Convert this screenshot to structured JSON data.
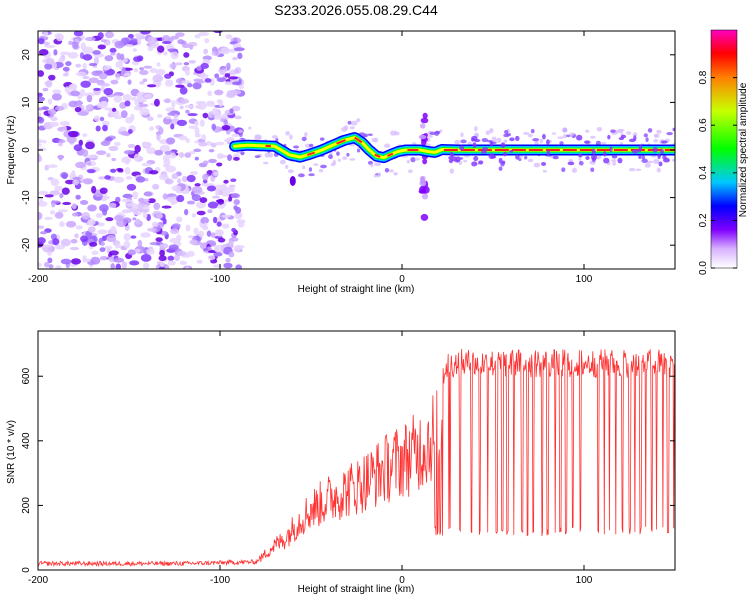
{
  "figure_title": "S233.2026.055.08.29.C44",
  "chart_data": [
    {
      "type": "heatmap",
      "title": "S233.2026.055.08.29.C44",
      "xlabel": "Height of straight line (km)",
      "ylabel": "Frequency (Hz)",
      "xlim": [
        -200,
        150
      ],
      "ylim": [
        -25,
        25
      ],
      "xticks": [
        -200,
        -100,
        0,
        100
      ],
      "yticks": [
        -20,
        -10,
        0,
        10,
        20
      ],
      "colorbar": {
        "label": "Normalized spectral amplitude",
        "range": [
          0,
          1
        ],
        "ticks": [
          0.0,
          0.2,
          0.4,
          0.6,
          0.8
        ],
        "tick_labels": [
          "0.0",
          "0.2",
          "0.4",
          "0.6",
          "0.8"
        ],
        "colormap": [
          "#ffffff",
          "#d9b3ff",
          "#8000ff",
          "#0000ff",
          "#00c8ff",
          "#00ff00",
          "#c8ff00",
          "#ff8000",
          "#ff0000",
          "#ff00c0"
        ]
      },
      "regions": [
        {
          "name": "noise",
          "x_range": [
            -200,
            -88
          ],
          "freq_range": [
            -25,
            25
          ],
          "amplitude_range": [
            0.0,
            0.2
          ]
        },
        {
          "name": "signal-band",
          "x_range": [
            -92,
            150
          ],
          "amplitude_range": [
            0.2,
            1.0
          ]
        }
      ],
      "signal_frequency_track": {
        "x": [
          -92,
          -85,
          -78,
          -70,
          -62,
          -56,
          -50,
          -44,
          -38,
          -32,
          -26,
          -22,
          -18,
          -14,
          -10,
          -6,
          -2,
          2,
          6,
          10,
          14,
          18,
          22,
          30,
          50,
          80,
          110,
          150
        ],
        "freq": [
          0.8,
          1.0,
          0.9,
          0.8,
          -1.0,
          -1.5,
          -0.8,
          0.0,
          1.0,
          2.0,
          2.6,
          1.6,
          0.0,
          -1.3,
          -1.6,
          -0.9,
          -0.3,
          0.0,
          0.0,
          0.0,
          -0.3,
          -0.5,
          0.1,
          0.0,
          0.0,
          0.0,
          0.0,
          0.0
        ]
      },
      "features": [
        {
          "name": "spike-near-15km",
          "x": 12,
          "freq_range": [
            -15,
            8
          ]
        },
        {
          "name": "blob-near-minus-60km",
          "x": -60,
          "freq": -6.5
        }
      ]
    },
    {
      "type": "line",
      "xlabel": "Height of straight line (km)",
      "ylabel": "SNR (10 * v/v)",
      "xlim": [
        -200,
        150
      ],
      "ylim": [
        0,
        740
      ],
      "xticks": [
        -200,
        -100,
        0,
        100
      ],
      "yticks": [
        0,
        200,
        400,
        600
      ],
      "series": [
        {
          "name": "SNR",
          "color": "#ff3030",
          "envelope_x": [
            -200,
            -120,
            -80,
            -75,
            -70,
            -65,
            -60,
            -55,
            -50,
            -45,
            -40,
            -35,
            -30,
            -25,
            -20,
            -15,
            -10,
            -5,
            0,
            5,
            10,
            15,
            18,
            20,
            22,
            25,
            30,
            50,
            80,
            110,
            150
          ],
          "envelope_y": [
            20,
            20,
            25,
            60,
            90,
            110,
            150,
            190,
            220,
            240,
            260,
            275,
            290,
            305,
            325,
            345,
            365,
            385,
            400,
            415,
            440,
            470,
            500,
            540,
            600,
            640,
            640,
            640,
            640,
            640,
            640
          ],
          "dropouts_x": [
            18,
            19,
            20,
            21,
            22,
            26,
            32,
            38,
            43,
            47,
            52,
            55,
            58,
            61,
            66,
            69,
            72,
            77,
            80,
            84,
            87,
            90,
            94,
            98,
            105,
            108,
            111,
            114,
            117,
            121,
            125,
            128,
            131,
            134,
            137,
            140,
            143,
            146,
            149
          ],
          "dropout_level": 120
        }
      ]
    }
  ]
}
